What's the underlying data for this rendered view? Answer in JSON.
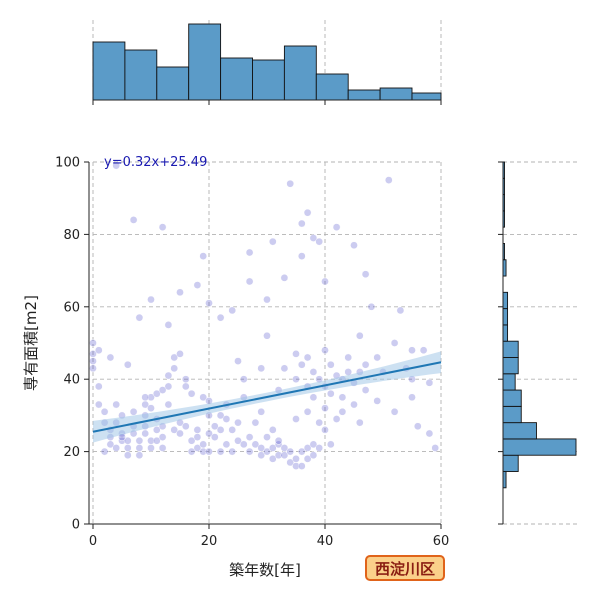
{
  "chart_data": {
    "type": "scatter",
    "title": "",
    "xlabel": "築年数[年]",
    "ylabel": "専有面積[m2]",
    "xlim": [
      0,
      60
    ],
    "ylim": [
      0,
      100
    ],
    "xticks": [
      0,
      20,
      40,
      60
    ],
    "yticks": [
      0,
      20,
      40,
      60,
      80,
      100
    ],
    "grid": true,
    "annotation": "y=0.32x+25.49",
    "regression": {
      "slope": 0.32,
      "intercept": 25.49,
      "x_range": [
        0,
        60
      ]
    },
    "top_histogram": {
      "bin_edges": [
        0,
        5.5,
        11,
        16.5,
        22,
        27.5,
        33,
        38.5,
        44,
        49.5,
        55,
        60.5
      ],
      "counts": [
        58,
        50,
        33,
        76,
        42,
        40,
        54,
        26,
        10,
        12,
        7
      ]
    },
    "right_histogram": {
      "bin_edges": [
        10,
        14.5,
        19,
        23.5,
        28,
        32.5,
        37,
        41.5,
        46,
        50.5,
        55,
        59.5,
        64,
        68.5,
        73,
        77.5,
        82,
        86.5,
        91,
        95.5,
        100
      ],
      "counts": [
        2,
        10,
        48,
        22,
        12,
        12,
        8,
        10,
        10,
        3,
        3,
        3,
        0,
        2,
        1,
        0,
        1,
        1,
        1,
        1
      ]
    },
    "points": [
      [
        0,
        50
      ],
      [
        0,
        47
      ],
      [
        0,
        45
      ],
      [
        0,
        43
      ],
      [
        1,
        38
      ],
      [
        1,
        33
      ],
      [
        2,
        31
      ],
      [
        2,
        28
      ],
      [
        3,
        26
      ],
      [
        3,
        24
      ],
      [
        3,
        22
      ],
      [
        4,
        21
      ],
      [
        4,
        28
      ],
      [
        4,
        33
      ],
      [
        5,
        30
      ],
      [
        5,
        25
      ],
      [
        5,
        23
      ],
      [
        6,
        21
      ],
      [
        6,
        19
      ],
      [
        6,
        23
      ],
      [
        7,
        25
      ],
      [
        7,
        27
      ],
      [
        7,
        31
      ],
      [
        8,
        23
      ],
      [
        8,
        21
      ],
      [
        8,
        19
      ],
      [
        9,
        33
      ],
      [
        9,
        30
      ],
      [
        9,
        27
      ],
      [
        9,
        25
      ],
      [
        10,
        21
      ],
      [
        10,
        23
      ],
      [
        10,
        35
      ],
      [
        10,
        32
      ],
      [
        11,
        26
      ],
      [
        11,
        23
      ],
      [
        11,
        29
      ],
      [
        11,
        36
      ],
      [
        12,
        27
      ],
      [
        12,
        24
      ],
      [
        12,
        21
      ],
      [
        13,
        41
      ],
      [
        13,
        38
      ],
      [
        13,
        33
      ],
      [
        14,
        46
      ],
      [
        14,
        43
      ],
      [
        14,
        26
      ],
      [
        15,
        28
      ],
      [
        15,
        25
      ],
      [
        15,
        47
      ],
      [
        16,
        40
      ],
      [
        16,
        38
      ],
      [
        17,
        23
      ],
      [
        17,
        20
      ],
      [
        17,
        36
      ],
      [
        18,
        26
      ],
      [
        18,
        24
      ],
      [
        18,
        21
      ],
      [
        19,
        20
      ],
      [
        19,
        35
      ],
      [
        19,
        22
      ],
      [
        20,
        20
      ],
      [
        20,
        25
      ],
      [
        20,
        30
      ],
      [
        21,
        27
      ],
      [
        21,
        24
      ],
      [
        22,
        30
      ],
      [
        22,
        26
      ],
      [
        22,
        20
      ],
      [
        23,
        33
      ],
      [
        23,
        22
      ],
      [
        24,
        20
      ],
      [
        24,
        26
      ],
      [
        25,
        28
      ],
      [
        25,
        23
      ],
      [
        25,
        45
      ],
      [
        26,
        40
      ],
      [
        26,
        22
      ],
      [
        27,
        24
      ],
      [
        27,
        20
      ],
      [
        28,
        28
      ],
      [
        28,
        22
      ],
      [
        29,
        21
      ],
      [
        29,
        19
      ],
      [
        29,
        43
      ],
      [
        30,
        20
      ],
      [
        30,
        52
      ],
      [
        30,
        24
      ],
      [
        31,
        18
      ],
      [
        31,
        21
      ],
      [
        31,
        26
      ],
      [
        32,
        19
      ],
      [
        32,
        22
      ],
      [
        32,
        23
      ],
      [
        33,
        21
      ],
      [
        33,
        19
      ],
      [
        33,
        43
      ],
      [
        34,
        20
      ],
      [
        34,
        17
      ],
      [
        35,
        18
      ],
      [
        35,
        16
      ],
      [
        35,
        40
      ],
      [
        35,
        47
      ],
      [
        36,
        20
      ],
      [
        36,
        16
      ],
      [
        36,
        44
      ],
      [
        37,
        18
      ],
      [
        37,
        21
      ],
      [
        37,
        38
      ],
      [
        37,
        46
      ],
      [
        38,
        19
      ],
      [
        38,
        22
      ],
      [
        38,
        42
      ],
      [
        38,
        35
      ],
      [
        39,
        21
      ],
      [
        39,
        28
      ],
      [
        39,
        40
      ],
      [
        40,
        48
      ],
      [
        40,
        38
      ],
      [
        40,
        32
      ],
      [
        41,
        22
      ],
      [
        41,
        36
      ],
      [
        41,
        44
      ],
      [
        42,
        29
      ],
      [
        42,
        41
      ],
      [
        43,
        40
      ],
      [
        43,
        35
      ],
      [
        44,
        42
      ],
      [
        44,
        46
      ],
      [
        45,
        39
      ],
      [
        45,
        33
      ],
      [
        46,
        42
      ],
      [
        46,
        52
      ],
      [
        47,
        44
      ],
      [
        47,
        37
      ],
      [
        48,
        60
      ],
      [
        49,
        46
      ],
      [
        50,
        42
      ],
      [
        51,
        95
      ],
      [
        52,
        50
      ],
      [
        53,
        59
      ],
      [
        54,
        43
      ],
      [
        55,
        40
      ],
      [
        55,
        35
      ],
      [
        56,
        27
      ],
      [
        57,
        48
      ],
      [
        58,
        25
      ],
      [
        59,
        21
      ],
      [
        1,
        48
      ],
      [
        3,
        46
      ],
      [
        6,
        44
      ],
      [
        8,
        57
      ],
      [
        10,
        62
      ],
      [
        13,
        55
      ],
      [
        15,
        64
      ],
      [
        18,
        66
      ],
      [
        20,
        61
      ],
      [
        22,
        57
      ],
      [
        24,
        59
      ],
      [
        27,
        67
      ],
      [
        30,
        62
      ],
      [
        33,
        68
      ],
      [
        36,
        74
      ],
      [
        38,
        79
      ],
      [
        40,
        67
      ],
      [
        42,
        82
      ],
      [
        45,
        77
      ],
      [
        47,
        69
      ],
      [
        7,
        84
      ],
      [
        12,
        82
      ],
      [
        19,
        74
      ],
      [
        27,
        75
      ],
      [
        31,
        78
      ],
      [
        34,
        94
      ],
      [
        37,
        86
      ],
      [
        39,
        78
      ],
      [
        4,
        99
      ],
      [
        36,
        83
      ],
      [
        2,
        20
      ],
      [
        5,
        24
      ],
      [
        9,
        35
      ],
      [
        12,
        37
      ],
      [
        16,
        27
      ],
      [
        20,
        34
      ],
      [
        23,
        29
      ],
      [
        26,
        35
      ],
      [
        29,
        31
      ],
      [
        32,
        37
      ],
      [
        35,
        29
      ],
      [
        37,
        31
      ],
      [
        40,
        26
      ],
      [
        43,
        31
      ],
      [
        46,
        28
      ],
      [
        49,
        34
      ],
      [
        52,
        31
      ],
      [
        55,
        48
      ],
      [
        58,
        39
      ]
    ]
  },
  "ward_badge": "西淀川区"
}
